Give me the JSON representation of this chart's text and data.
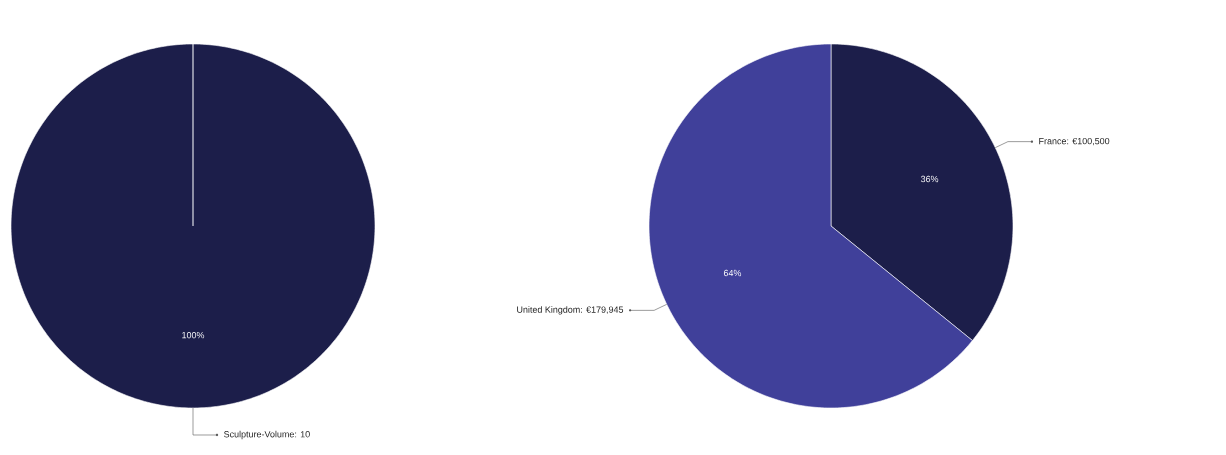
{
  "chart_data": [
    {
      "type": "pie",
      "categories": [
        "Sculpture-Volume"
      ],
      "values": [
        10
      ],
      "colors": [
        "#1c1e4a"
      ],
      "value_labels": [
        ": 10"
      ],
      "annotations": [
        {
          "text": "100%",
          "x": "Sculpture-Volume"
        }
      ]
    },
    {
      "type": "pie",
      "categories": [
        "France",
        "United Kingdom"
      ],
      "values": [
        100500,
        179945
      ],
      "colors": [
        "#1c1e4a",
        "#40409a"
      ],
      "value_labels": [
        ": €100,500",
        ": €179,945"
      ],
      "annotations": [
        {
          "text": "36%",
          "x": "France"
        },
        {
          "text": "64%",
          "x": "United Kingdom"
        }
      ]
    }
  ]
}
